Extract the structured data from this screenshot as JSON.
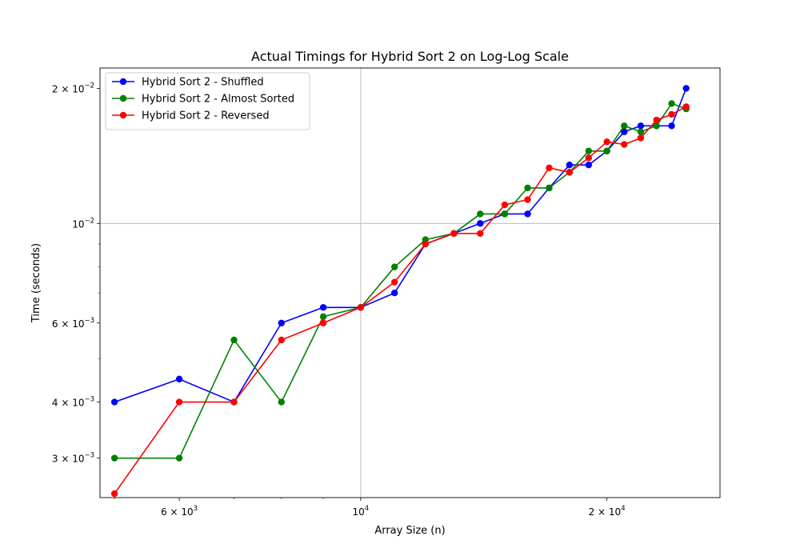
{
  "chart_data": {
    "type": "line",
    "title": "Actual Timings for Hybrid Sort 2 on Log-Log Scale",
    "xlabel": "Array Size (n)",
    "ylabel": "Time (seconds)",
    "xscale": "log",
    "yscale": "log",
    "xlim": [
      4800,
      27500
    ],
    "ylim": [
      0.00245,
      0.0222
    ],
    "grid": "major",
    "legend_position": "upper left",
    "x_ticks": [
      {
        "value": 6000,
        "base": "6 × 10",
        "exp": "3"
      },
      {
        "value": 10000,
        "base": "10",
        "exp": "4"
      },
      {
        "value": 20000,
        "base": "2 × 10",
        "exp": "4"
      }
    ],
    "y_ticks": [
      {
        "value": 0.003,
        "base": "3 × 10",
        "exp": "−3"
      },
      {
        "value": 0.004,
        "base": "4 × 10",
        "exp": "−3"
      },
      {
        "value": 0.006,
        "base": "6 × 10",
        "exp": "−3"
      },
      {
        "value": 0.01,
        "base": "10",
        "exp": "−2"
      },
      {
        "value": 0.02,
        "base": "2 × 10",
        "exp": "−2"
      }
    ],
    "x": [
      5000,
      6000,
      7000,
      8000,
      9000,
      10000,
      11000,
      12000,
      13000,
      14000,
      15000,
      16000,
      17000,
      18000,
      19000,
      20000,
      21000,
      22000,
      23000,
      24000,
      25000
    ],
    "series": [
      {
        "name": "Hybrid Sort 2 - Shuffled",
        "color": "#0000ff",
        "values": [
          0.004,
          0.0045,
          0.004,
          0.006,
          0.0065,
          0.0065,
          0.007,
          0.009,
          0.0095,
          0.01,
          0.0105,
          0.0105,
          0.012,
          0.0135,
          0.0135,
          0.0145,
          0.016,
          0.0165,
          0.0165,
          0.0165,
          0.02
        ]
      },
      {
        "name": "Hybrid Sort 2 - Almost Sorted",
        "color": "#008000",
        "values": [
          0.003,
          0.003,
          0.0055,
          0.004,
          0.0062,
          0.0065,
          0.008,
          0.0092,
          0.0095,
          0.0105,
          0.0105,
          0.012,
          0.012,
          0.013,
          0.0145,
          0.0145,
          0.0165,
          0.016,
          0.0165,
          0.0185,
          0.018
        ]
      },
      {
        "name": "Hybrid Sort 2 - Reversed",
        "color": "#ff0000",
        "values": [
          0.0025,
          0.004,
          0.004,
          0.0055,
          0.006,
          0.0065,
          0.0074,
          0.009,
          0.0095,
          0.0095,
          0.011,
          0.0113,
          0.0133,
          0.013,
          0.014,
          0.0152,
          0.015,
          0.0155,
          0.017,
          0.0175,
          0.0182
        ]
      }
    ]
  }
}
